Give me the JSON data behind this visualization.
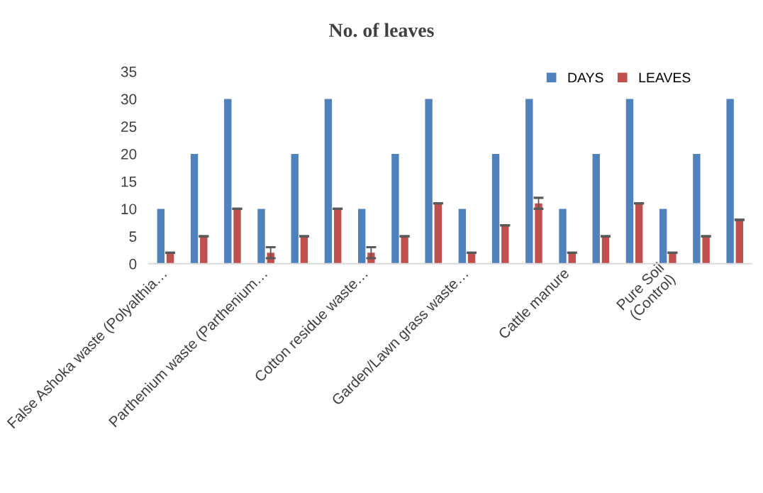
{
  "chart_data": {
    "type": "bar",
    "title": "No. of leaves",
    "categories": [
      "False Ashoka waste (Polyalthia…",
      null,
      null,
      "Parthenium waste (Parthenium…",
      null,
      null,
      "Cotton residue waste…",
      null,
      null,
      "Garden/Lawn grass waste…",
      null,
      null,
      "Cattle manure",
      null,
      null,
      "Pure Soil\n(Control)",
      null,
      null
    ],
    "series": [
      {
        "name": "DAYS",
        "color": "#4f81bd",
        "values": [
          10,
          20,
          30,
          10,
          20,
          30,
          10,
          20,
          30,
          10,
          20,
          30,
          10,
          20,
          30,
          10,
          20,
          30
        ]
      },
      {
        "name": "LEAVES",
        "color": "#c0504d",
        "values": [
          2,
          5,
          10,
          2,
          5,
          10,
          2,
          5,
          11,
          2,
          7,
          11,
          2,
          5,
          11,
          2,
          5,
          8
        ],
        "errors": [
          0,
          0,
          0,
          1,
          0,
          0,
          1,
          0,
          0,
          0,
          0,
          1,
          0,
          0,
          0,
          0,
          0,
          0
        ]
      }
    ],
    "ylim": [
      0,
      35
    ],
    "yticks": [
      0,
      5,
      10,
      15,
      20,
      25,
      30,
      35
    ],
    "grid": false,
    "legend": "top right"
  }
}
